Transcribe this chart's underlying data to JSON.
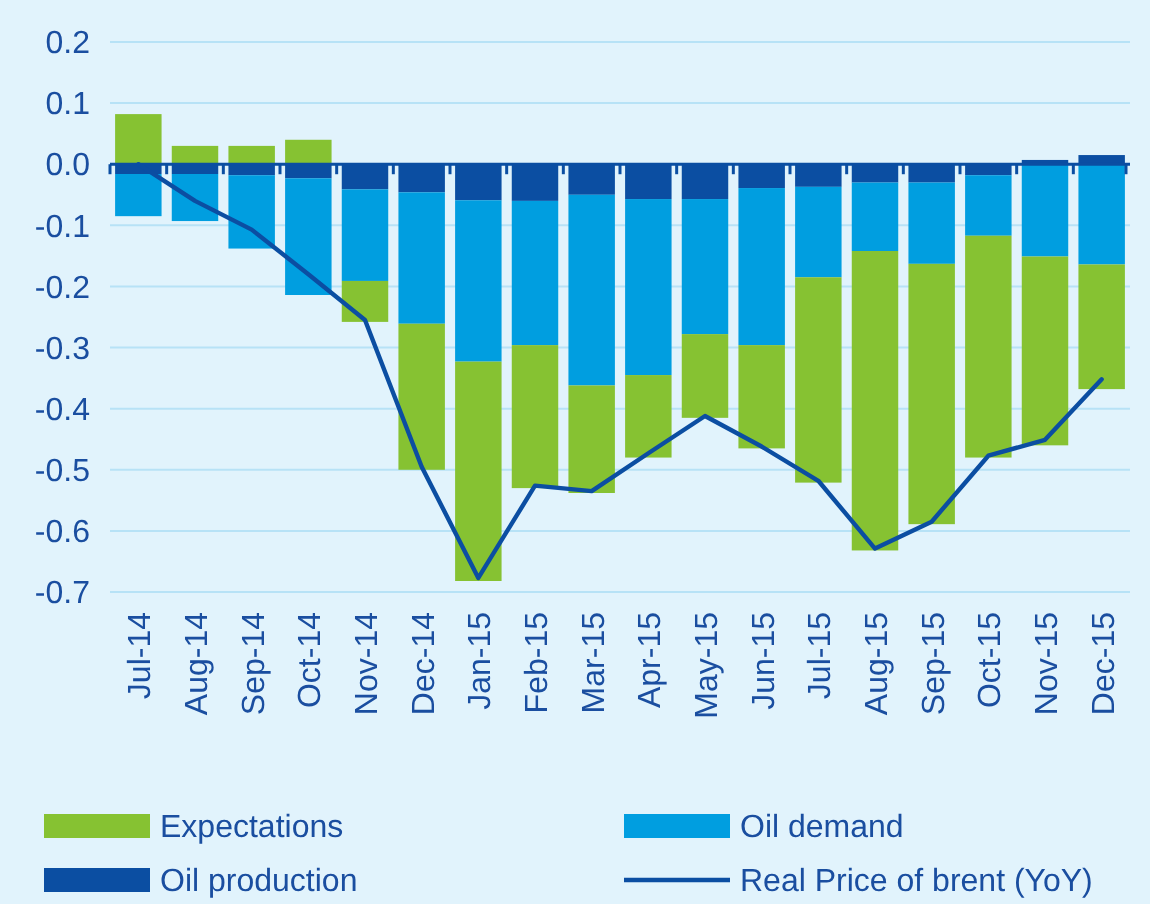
{
  "chart_data": {
    "type": "bar",
    "stacked": true,
    "categories": [
      "Jul-14",
      "Aug-14",
      "Sep-14",
      "Oct-14",
      "Nov-14",
      "Dec-14",
      "Jan-15",
      "Feb-15",
      "Mar-15",
      "Apr-15",
      "May-15",
      "Jun-15",
      "Jul-15",
      "Aug-15",
      "Sep-15",
      "Oct-15",
      "Nov-15",
      "Dec-15"
    ],
    "series": [
      {
        "name": "Oil production",
        "color": "#0b4ea2",
        "values": [
          -0.016,
          -0.016,
          -0.018,
          -0.023,
          -0.041,
          -0.046,
          -0.059,
          -0.06,
          -0.05,
          -0.057,
          -0.057,
          -0.039,
          -0.037,
          -0.03,
          -0.03,
          -0.018,
          0.007,
          0.015
        ]
      },
      {
        "name": "Oil demand",
        "color": "#009ee0",
        "values": [
          -0.069,
          -0.077,
          -0.12,
          -0.191,
          -0.15,
          -0.215,
          -0.264,
          -0.236,
          -0.312,
          -0.288,
          -0.221,
          -0.257,
          -0.148,
          -0.112,
          -0.133,
          -0.099,
          -0.151,
          -0.164
        ]
      },
      {
        "name": "Expectations",
        "color": "#86c232",
        "values": [
          0.082,
          0.03,
          0.03,
          0.04,
          -0.067,
          -0.239,
          -0.359,
          -0.234,
          -0.176,
          -0.135,
          -0.137,
          -0.169,
          -0.336,
          -0.49,
          -0.426,
          -0.363,
          -0.309,
          -0.204
        ]
      },
      {
        "name": "Real Price of brent (YoY)",
        "type": "line",
        "color": "#0b4ea2",
        "values": [
          0.0,
          -0.06,
          -0.107,
          -0.18,
          -0.255,
          -0.495,
          -0.677,
          -0.526,
          -0.535,
          -0.473,
          -0.412,
          -0.462,
          -0.518,
          -0.629,
          -0.585,
          -0.477,
          -0.451,
          -0.352
        ]
      }
    ],
    "ylim": [
      -0.7,
      0.2
    ],
    "yticks": [
      {
        "value": 0.2,
        "label": "0.2"
      },
      {
        "value": 0.1,
        "label": "0.1"
      },
      {
        "value": 0,
        "label": "0.0"
      },
      {
        "value": -0.1,
        "label": "-0.1"
      },
      {
        "value": -0.2,
        "label": "-0.2"
      },
      {
        "value": -0.3,
        "label": "-0.3"
      },
      {
        "value": -0.4,
        "label": "-0.4"
      },
      {
        "value": -0.5,
        "label": "-0.5"
      },
      {
        "value": -0.6,
        "label": "-0.6"
      },
      {
        "value": -0.7,
        "label": "-0.7"
      }
    ],
    "ref_lines": [
      {
        "axis": "y",
        "value": 0,
        "color": "#0b4ea2"
      }
    ],
    "grid": "y",
    "legend": "bottom"
  }
}
